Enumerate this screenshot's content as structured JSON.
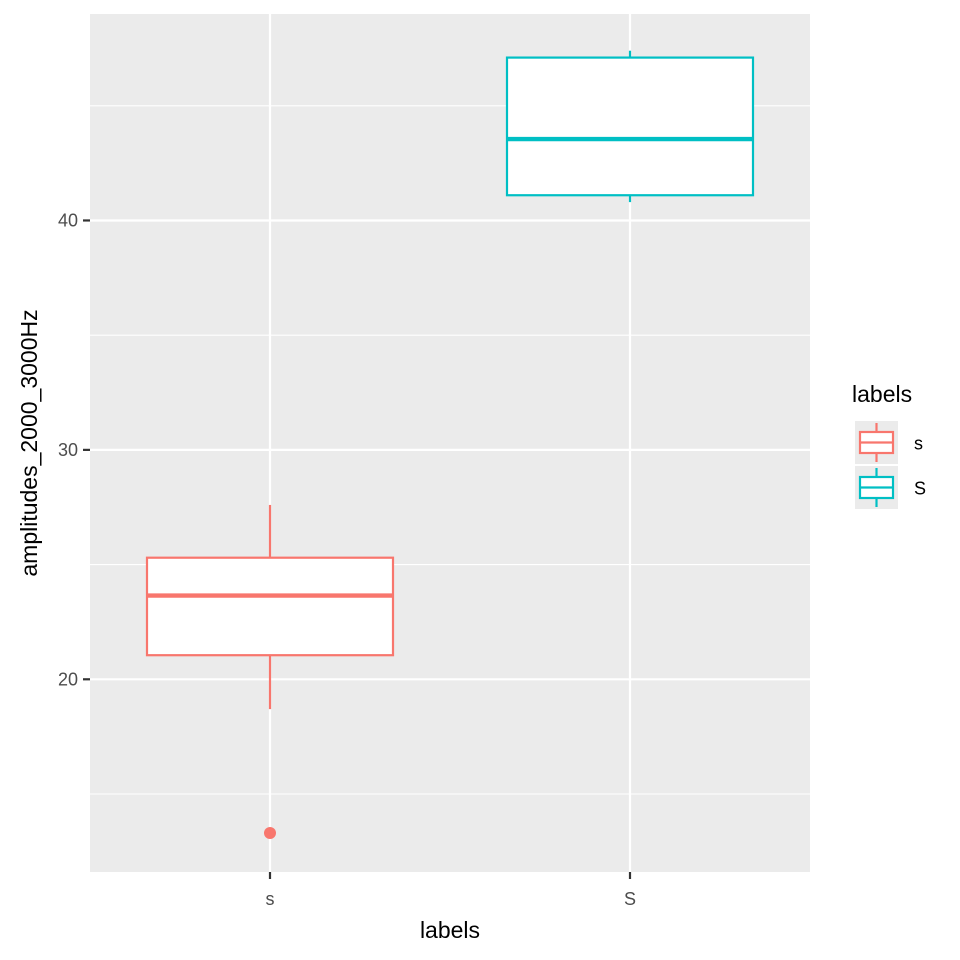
{
  "chart_data": {
    "type": "boxplot",
    "title": "",
    "xlabel": "labels",
    "ylabel": "amplitudes_2000_3000Hz",
    "categories": [
      "s",
      "S"
    ],
    "ylim": [
      11.6,
      49.0
    ],
    "yticks": [
      20,
      30,
      40
    ],
    "grid": true,
    "legend": {
      "title": "labels",
      "position": "right",
      "entries": [
        "s",
        "S"
      ]
    },
    "series": [
      {
        "category": "s",
        "color": "#F8766D",
        "whisker_low": 18.7,
        "q1": 21.05,
        "median": 23.65,
        "q3": 25.3,
        "whisker_high": 27.6,
        "outliers": [
          13.3
        ]
      },
      {
        "category": "S",
        "color": "#00BFC4",
        "whisker_low": 40.8,
        "q1": 41.1,
        "median": 43.55,
        "q3": 47.1,
        "whisker_high": 47.4,
        "outliers": []
      }
    ]
  }
}
